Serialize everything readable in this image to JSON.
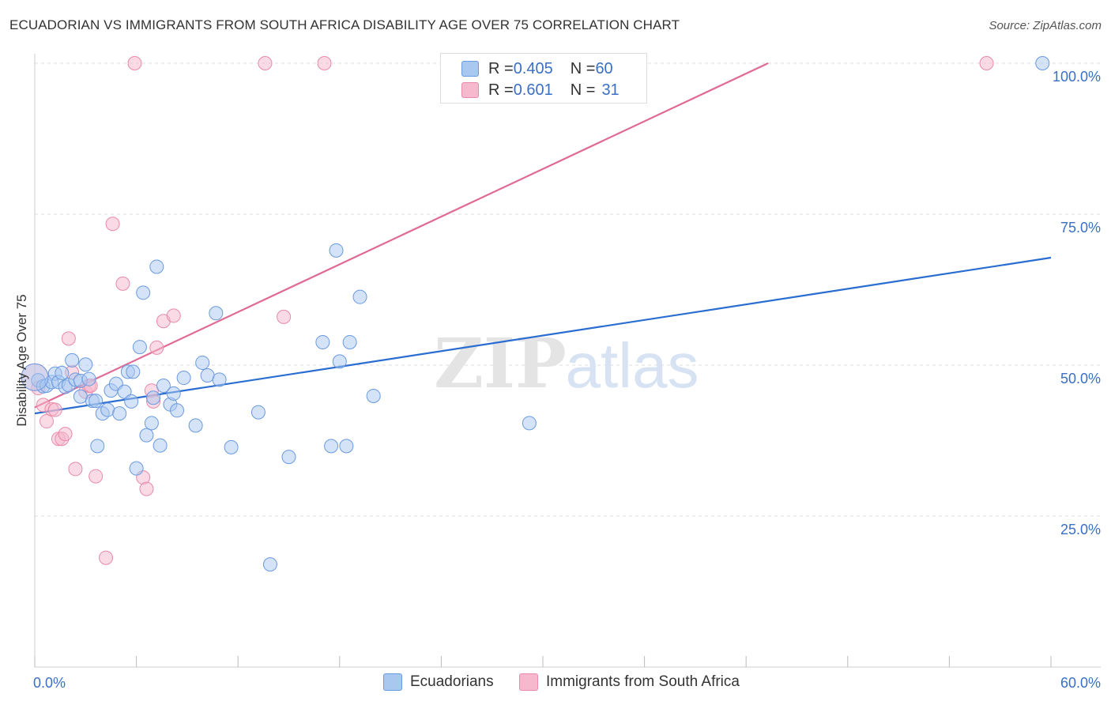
{
  "title": "ECUADORIAN VS IMMIGRANTS FROM SOUTH AFRICA DISABILITY AGE OVER 75 CORRELATION CHART",
  "source": "Source: ZipAtlas.com",
  "watermark": {
    "part1": "ZIP",
    "part2": "atlas"
  },
  "legend": {
    "rows": [
      {
        "r_label": "R = ",
        "r_value": "0.405",
        "n_label": "N = ",
        "n_value": "60"
      },
      {
        "r_label": "R = ",
        "r_value": "0.601",
        "n_label": "N = ",
        "n_value": "31"
      }
    ]
  },
  "bottom_legend": [
    "Ecuadorians",
    "Immigrants from South Africa"
  ],
  "colors": {
    "blue_fill": "#a9c8f0",
    "blue_stroke": "#6a9ae0",
    "blue_line": "#2a6dd0",
    "pink_fill": "#f6b8cc",
    "pink_stroke": "#e98aa8",
    "pink_line": "#e06a95",
    "axis_text": "#3a6fc6",
    "grid": "#dddddd"
  },
  "chart_data": {
    "type": "scatter",
    "title": "ECUADORIAN VS IMMIGRANTS FROM SOUTH AFRICA DISABILITY AGE OVER 75 CORRELATION CHART",
    "xlabel": "",
    "ylabel": "Disability Age Over 75",
    "xlim": [
      0,
      60
    ],
    "ylim": [
      0,
      100
    ],
    "x_tick_labels": [
      {
        "value": 0,
        "label": "0.0%"
      },
      {
        "value": 60,
        "label": "60.0%"
      }
    ],
    "y_tick_labels": [
      {
        "value": 25,
        "label": "25.0%"
      },
      {
        "value": 50,
        "label": "50.0%"
      },
      {
        "value": 75,
        "label": "75.0%"
      },
      {
        "value": 100,
        "label": "100.0%"
      }
    ],
    "series": [
      {
        "name": "Ecuadorians",
        "color": "blue",
        "trend": {
          "x0": 0,
          "y0": 42.0,
          "x1": 60,
          "y1": 67.8
        },
        "points": [
          [
            0.2,
            47.5
          ],
          [
            0.5,
            46.5
          ],
          [
            0.7,
            46.6
          ],
          [
            1.0,
            47.2
          ],
          [
            1.2,
            48.6
          ],
          [
            1.4,
            47.2
          ],
          [
            1.6,
            48.7
          ],
          [
            1.8,
            46.4
          ],
          [
            2.0,
            46.7
          ],
          [
            2.2,
            50.8
          ],
          [
            2.4,
            47.6
          ],
          [
            2.7,
            47.4
          ],
          [
            2.7,
            44.8
          ],
          [
            3.0,
            50.1
          ],
          [
            3.2,
            47.7
          ],
          [
            3.4,
            44.1
          ],
          [
            3.6,
            44.1
          ],
          [
            3.7,
            36.6
          ],
          [
            4.0,
            42.0
          ],
          [
            4.3,
            42.6
          ],
          [
            4.5,
            45.8
          ],
          [
            4.8,
            46.9
          ],
          [
            5.0,
            42.0
          ],
          [
            5.3,
            45.6
          ],
          [
            5.5,
            48.9
          ],
          [
            5.7,
            44.0
          ],
          [
            5.8,
            48.9
          ],
          [
            6.0,
            32.9
          ],
          [
            6.2,
            53.0
          ],
          [
            6.4,
            62.0
          ],
          [
            6.6,
            38.4
          ],
          [
            6.9,
            40.4
          ],
          [
            7.0,
            44.6
          ],
          [
            7.2,
            66.3
          ],
          [
            7.4,
            36.7
          ],
          [
            7.6,
            46.6
          ],
          [
            8.0,
            43.5
          ],
          [
            8.2,
            45.3
          ],
          [
            8.4,
            42.5
          ],
          [
            8.8,
            47.9
          ],
          [
            9.5,
            40.0
          ],
          [
            9.9,
            50.4
          ],
          [
            10.2,
            48.3
          ],
          [
            10.7,
            58.6
          ],
          [
            10.9,
            47.6
          ],
          [
            11.6,
            36.4
          ],
          [
            13.2,
            42.2
          ],
          [
            13.9,
            17.0
          ],
          [
            15.0,
            34.8
          ],
          [
            17.0,
            53.8
          ],
          [
            17.5,
            36.6
          ],
          [
            17.8,
            69.0
          ],
          [
            18.0,
            50.6
          ],
          [
            18.4,
            36.6
          ],
          [
            18.6,
            53.8
          ],
          [
            19.2,
            61.3
          ],
          [
            20.0,
            44.9
          ],
          [
            29.2,
            40.4
          ],
          [
            59.5,
            100.0
          ],
          [
            0.0,
            48.0
          ]
        ]
      },
      {
        "name": "Immigrants from South Africa",
        "color": "pink",
        "trend": {
          "x0": 0,
          "y0": 43.0,
          "x1": 43.3,
          "y1": 100
        },
        "points": [
          [
            0.2,
            46.2
          ],
          [
            0.5,
            43.4
          ],
          [
            0.7,
            40.7
          ],
          [
            1.0,
            42.7
          ],
          [
            1.2,
            42.6
          ],
          [
            1.4,
            37.8
          ],
          [
            1.6,
            37.8
          ],
          [
            1.8,
            38.6
          ],
          [
            2.0,
            54.4
          ],
          [
            2.2,
            48.8
          ],
          [
            2.4,
            32.8
          ],
          [
            3.0,
            45.6
          ],
          [
            3.2,
            46.6
          ],
          [
            3.6,
            31.6
          ],
          [
            4.2,
            18.1
          ],
          [
            4.6,
            73.4
          ],
          [
            5.2,
            63.5
          ],
          [
            6.4,
            31.4
          ],
          [
            6.6,
            29.5
          ],
          [
            6.9,
            45.8
          ],
          [
            7.0,
            44.0
          ],
          [
            7.2,
            52.9
          ],
          [
            7.6,
            57.3
          ],
          [
            8.2,
            58.2
          ],
          [
            5.9,
            100.0
          ],
          [
            13.6,
            100.0
          ],
          [
            17.1,
            100.0
          ],
          [
            14.7,
            58.0
          ],
          [
            56.2,
            100.0
          ],
          [
            3.3,
            46.6
          ],
          [
            0.0,
            48.0
          ]
        ]
      }
    ]
  }
}
